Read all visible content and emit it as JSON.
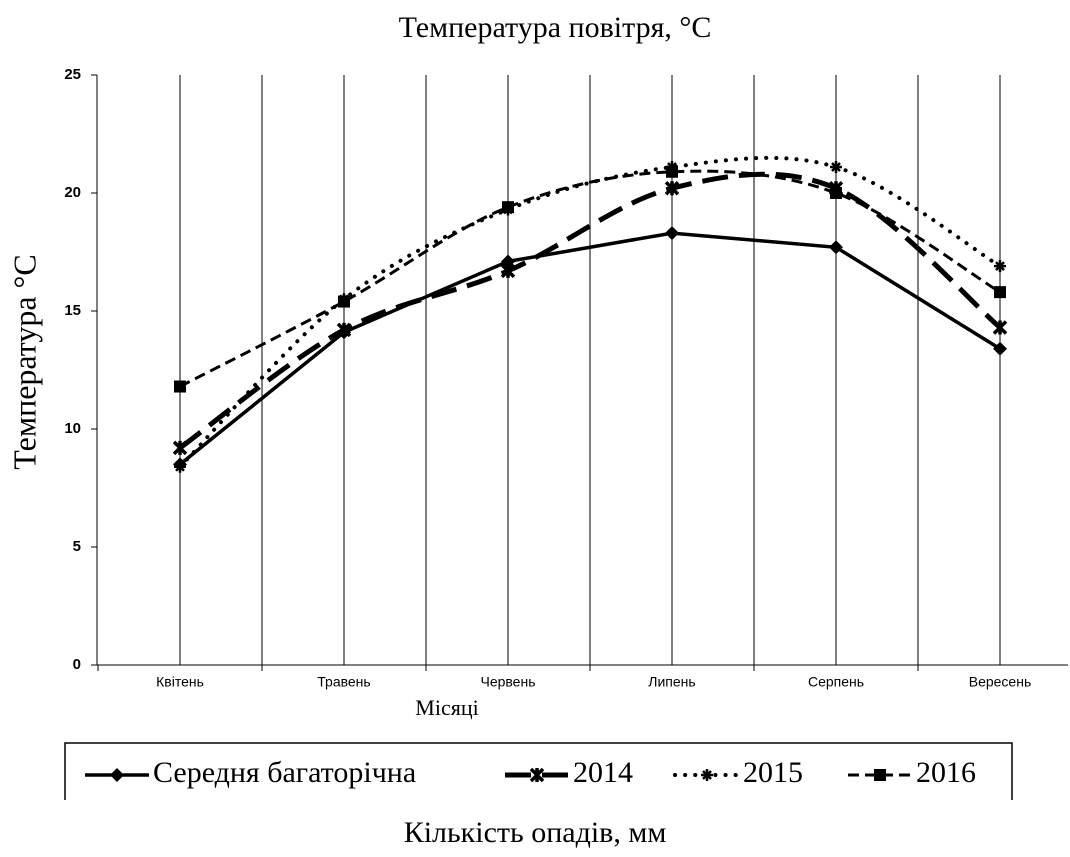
{
  "chart_data": {
    "type": "line",
    "title": "Температура повітря, °C",
    "y_label": "Температура °C",
    "x_label": "Місяці",
    "categories": [
      "Квітень",
      "Травень",
      "Червень",
      "Липень",
      "Серпень",
      "Вересень"
    ],
    "ylim": [
      0,
      25
    ],
    "yticks": [
      0,
      5,
      10,
      15,
      20,
      25
    ],
    "grid": true,
    "legend": "bottom",
    "series": [
      {
        "name": "Середня багаторічна",
        "color": "#000000",
        "marker": "diamond",
        "dash": "solid",
        "smooth": false,
        "values": [
          8.5,
          14.1,
          17.1,
          18.3,
          17.7,
          13.4
        ]
      },
      {
        "name": "2014",
        "color": "#000000",
        "marker": "cross",
        "dash": "longdash",
        "smooth": true,
        "values": [
          9.2,
          14.2,
          16.7,
          20.2,
          20.2,
          14.3
        ]
      },
      {
        "name": "2015",
        "color": "#000000",
        "marker": "star",
        "dash": "dot",
        "smooth": true,
        "values": [
          8.4,
          15.5,
          19.3,
          21.1,
          21.1,
          16.9
        ]
      },
      {
        "name": "2016",
        "color": "#000000",
        "marker": "square",
        "dash": "dash",
        "smooth": true,
        "values": [
          11.8,
          15.4,
          19.4,
          20.9,
          20.0,
          15.8
        ]
      }
    ]
  },
  "footer_text": "Кількість опадів, мм"
}
